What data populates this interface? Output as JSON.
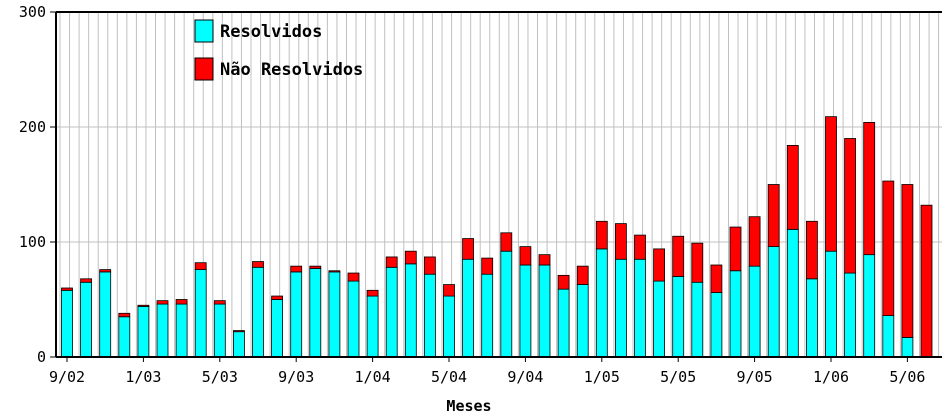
{
  "chart_data": {
    "type": "bar",
    "stacked": true,
    "x": [
      "9/02",
      "10/02",
      "11/02",
      "12/02",
      "1/03",
      "2/03",
      "3/03",
      "4/03",
      "5/03",
      "6/03",
      "7/03",
      "8/03",
      "9/03",
      "10/03",
      "11/03",
      "12/03",
      "1/04",
      "2/04",
      "3/04",
      "4/04",
      "5/04",
      "6/04",
      "7/04",
      "8/04",
      "9/04",
      "10/04",
      "11/04",
      "12/04",
      "1/05",
      "2/05",
      "3/05",
      "4/05",
      "5/05",
      "6/05",
      "7/05",
      "8/05",
      "9/05",
      "10/05",
      "11/05",
      "12/05",
      "1/06",
      "2/06",
      "3/06",
      "4/06",
      "5/06",
      "6/06"
    ],
    "xticks": [
      "9/02",
      "1/03",
      "5/03",
      "9/03",
      "1/04",
      "5/04",
      "9/04",
      "1/05",
      "5/05",
      "9/05",
      "1/06",
      "5/06"
    ],
    "series": [
      {
        "name": "Resolvidos",
        "color": "#00ffff",
        "values": [
          58,
          65,
          74,
          35,
          44,
          46,
          46,
          76,
          46,
          22,
          78,
          50,
          74,
          77,
          74,
          66,
          53,
          78,
          81,
          72,
          53,
          85,
          72,
          92,
          80,
          80,
          59,
          63,
          94,
          85,
          85,
          66,
          70,
          65,
          56,
          75,
          79,
          96,
          111,
          68,
          92,
          73,
          89,
          36,
          17,
          0
        ]
      },
      {
        "name": "Não Resolvidos",
        "color": "#ff0000",
        "values": [
          2,
          3,
          2,
          3,
          1,
          3,
          4,
          6,
          3,
          1,
          5,
          3,
          5,
          2,
          1,
          7,
          5,
          9,
          11,
          15,
          10,
          18,
          14,
          16,
          16,
          9,
          12,
          16,
          24,
          31,
          21,
          28,
          35,
          34,
          24,
          38,
          43,
          54,
          73,
          50,
          117,
          117,
          115,
          117,
          133,
          132
        ]
      }
    ],
    "xlabel": "Meses",
    "ylabel": "",
    "ylim": [
      0,
      300
    ],
    "yticks": [
      0,
      100,
      200,
      300
    ],
    "grid": true,
    "legend": "top-left"
  }
}
